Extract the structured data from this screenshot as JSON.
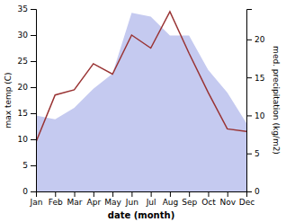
{
  "chart_data": {
    "type": "line",
    "categories": [
      "Jan",
      "Feb",
      "Mar",
      "Apr",
      "May",
      "Jun",
      "Jul",
      "Aug",
      "Sep",
      "Oct",
      "Nov",
      "Dec"
    ],
    "xlabel": "date (month)",
    "ylabel": "max temp (C)",
    "y2label": "med. precipitation (kg/m2)",
    "ylim": [
      0,
      35
    ],
    "yticks": [
      0,
      5,
      10,
      15,
      20,
      25,
      30,
      35
    ],
    "y2lim": [
      0,
      24
    ],
    "y2ticks": [
      0,
      5,
      10,
      15,
      20
    ],
    "grid": false,
    "series": [
      {
        "type": "area",
        "axis": "y2",
        "color": "#c5caf0",
        "values": [
          10.0,
          9.5,
          11.0,
          13.5,
          15.5,
          23.5,
          23.0,
          20.5,
          20.5,
          16.0,
          13.0,
          9.0
        ]
      },
      {
        "type": "line",
        "color": "#993333",
        "values": [
          9.5,
          18.5,
          19.5,
          24.5,
          22.5,
          30.0,
          27.5,
          34.5,
          26.5,
          19.0,
          12.0,
          11.5
        ]
      }
    ]
  }
}
